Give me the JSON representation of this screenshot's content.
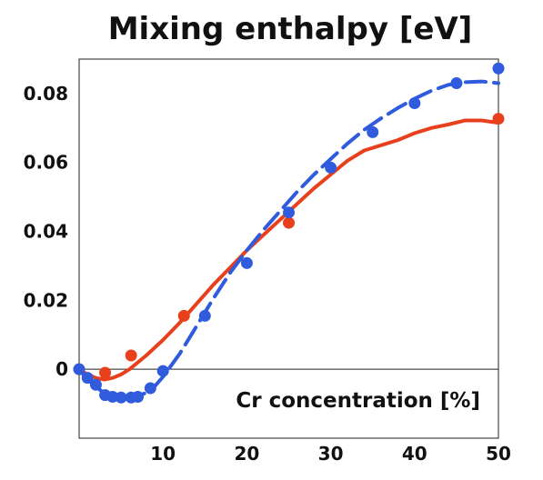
{
  "chart_data": {
    "type": "line",
    "title": "Mixing enthalpy [eV]",
    "xlabel": "Cr concentration [%]",
    "ylabel": "",
    "xlim": [
      0,
      50
    ],
    "ylim": [
      -0.02,
      0.09
    ],
    "x_ticks": [
      "10",
      "20",
      "30",
      "40",
      "50"
    ],
    "y_ticks": [
      "0",
      "0.02",
      "0.04",
      "0.06",
      "0.08"
    ],
    "grid": false,
    "legend": "none",
    "series": [
      {
        "color": "#e8401c",
        "style": "solid",
        "line": [
          [
            0,
            0.0
          ],
          [
            1,
            -0.0015
          ],
          [
            2,
            -0.0025
          ],
          [
            3,
            -0.003
          ],
          [
            4,
            -0.0025
          ],
          [
            5,
            -0.0015
          ],
          [
            6,
            0.0
          ],
          [
            8,
            0.004
          ],
          [
            10,
            0.0085
          ],
          [
            12,
            0.0135
          ],
          [
            14,
            0.019
          ],
          [
            16,
            0.0245
          ],
          [
            18,
            0.0295
          ],
          [
            20,
            0.0345
          ],
          [
            22,
            0.039
          ],
          [
            24,
            0.0435
          ],
          [
            26,
            0.048
          ],
          [
            28,
            0.0525
          ],
          [
            30,
            0.0565
          ],
          [
            32,
            0.0605
          ],
          [
            34,
            0.0635
          ],
          [
            36,
            0.065
          ],
          [
            38,
            0.0665
          ],
          [
            40,
            0.0685
          ],
          [
            42,
            0.07
          ],
          [
            44,
            0.071
          ],
          [
            46,
            0.0722
          ],
          [
            48,
            0.0722
          ],
          [
            50,
            0.0715
          ]
        ],
        "points": [
          [
            0,
            0.0
          ],
          [
            3.1,
            -0.001
          ],
          [
            6.2,
            0.004
          ],
          [
            12.5,
            0.0155
          ],
          [
            25,
            0.0425
          ],
          [
            50,
            0.0727
          ]
        ]
      },
      {
        "color": "#2f5bdc",
        "style": "dashed",
        "line": [
          [
            0,
            0.0
          ],
          [
            1,
            -0.003
          ],
          [
            2,
            -0.005
          ],
          [
            3,
            -0.007
          ],
          [
            4,
            -0.008
          ],
          [
            5,
            -0.0083
          ],
          [
            6,
            -0.0082
          ],
          [
            7,
            -0.0078
          ],
          [
            8,
            -0.0068
          ],
          [
            9,
            -0.005
          ],
          [
            10,
            -0.0022
          ],
          [
            12,
            0.0045
          ],
          [
            14,
            0.0125
          ],
          [
            16,
            0.0205
          ],
          [
            18,
            0.028
          ],
          [
            20,
            0.0345
          ],
          [
            22,
            0.0405
          ],
          [
            24,
            0.046
          ],
          [
            26,
            0.0515
          ],
          [
            28,
            0.0565
          ],
          [
            30,
            0.061
          ],
          [
            32,
            0.0655
          ],
          [
            34,
            0.0695
          ],
          [
            36,
            0.0728
          ],
          [
            38,
            0.0758
          ],
          [
            40,
            0.0785
          ],
          [
            42,
            0.0808
          ],
          [
            44,
            0.0825
          ],
          [
            46,
            0.0833
          ],
          [
            48,
            0.0835
          ],
          [
            50,
            0.083
          ]
        ],
        "points": [
          [
            0,
            0.0
          ],
          [
            1,
            -0.0025
          ],
          [
            2,
            -0.0045
          ],
          [
            3.1,
            -0.0075
          ],
          [
            4,
            -0.008
          ],
          [
            5,
            -0.0082
          ],
          [
            6.2,
            -0.0082
          ],
          [
            7,
            -0.008
          ],
          [
            8.5,
            -0.0055
          ],
          [
            10,
            -0.0005
          ],
          [
            15,
            0.0155
          ],
          [
            20,
            0.0308
          ],
          [
            25,
            0.0455
          ],
          [
            30,
            0.0585
          ],
          [
            35,
            0.0688
          ],
          [
            40,
            0.0772
          ],
          [
            45,
            0.083
          ],
          [
            50,
            0.0873
          ]
        ]
      }
    ]
  }
}
